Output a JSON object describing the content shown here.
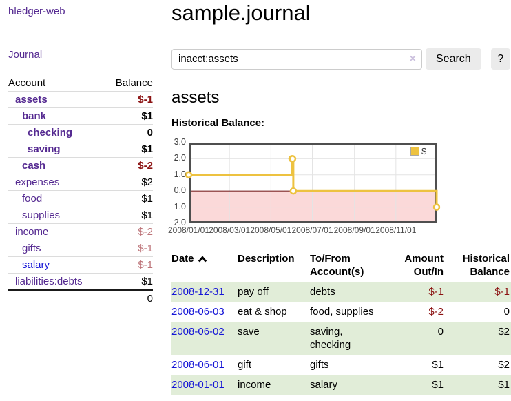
{
  "colors": {
    "link_purple": "#552a91",
    "link_blue": "#1515d6",
    "negative_strong": "#8b1212",
    "negative_soft": "#bd7479",
    "row_stripe_green": "#e1edd8",
    "series_yellow": "#edc240",
    "negative_region_pink": "#fbd9d9",
    "zero_line_red": "#7c2929",
    "chart_frame_gray": "#4f4f4f",
    "button_gray": "#ebebeb"
  },
  "sidebar": {
    "app_title": "hledger-web",
    "nav_journal": "Journal",
    "table": {
      "account_header": "Account",
      "balance_header": "Balance",
      "accounts": [
        {
          "name": "assets",
          "balance": "$-1",
          "depth": 0,
          "bold": true,
          "bal_class": "neg",
          "name_color": "purple"
        },
        {
          "name": "bank",
          "balance": "$1",
          "depth": 1,
          "bold": true,
          "bal_class": "",
          "name_color": "purple"
        },
        {
          "name": "checking",
          "balance": "0",
          "depth": 2,
          "bold": true,
          "bal_class": "",
          "name_color": "purple"
        },
        {
          "name": "saving",
          "balance": "$1",
          "depth": 2,
          "bold": true,
          "bal_class": "",
          "name_color": "purple"
        },
        {
          "name": "cash",
          "balance": "$-2",
          "depth": 1,
          "bold": true,
          "bal_class": "neg",
          "name_color": "purple"
        },
        {
          "name": "expenses",
          "balance": "$2",
          "depth": 0,
          "bold": false,
          "bal_class": "",
          "name_color": "purple"
        },
        {
          "name": "food",
          "balance": "$1",
          "depth": 1,
          "bold": false,
          "bal_class": "",
          "name_color": "purple"
        },
        {
          "name": "supplies",
          "balance": "$1",
          "depth": 1,
          "bold": false,
          "bal_class": "",
          "name_color": "purple"
        },
        {
          "name": "income",
          "balance": "$-2",
          "depth": 0,
          "bold": false,
          "bal_class": "soft-neg",
          "name_color": "purple"
        },
        {
          "name": "gifts",
          "balance": "$-1",
          "depth": 1,
          "bold": false,
          "bal_class": "soft-neg",
          "name_color": "purple"
        },
        {
          "name": "salary",
          "balance": "$-1",
          "depth": 1,
          "bold": false,
          "bal_class": "soft-neg",
          "name_color": "blue"
        },
        {
          "name": "liabilities:debts",
          "balance": "$1",
          "depth": 0,
          "bold": false,
          "bal_class": "",
          "name_color": "purple"
        }
      ],
      "total": "0"
    }
  },
  "main": {
    "title": "sample.journal",
    "search": {
      "value": "inacct:assets",
      "clear_icon": "×",
      "button": "Search",
      "help_button": "?"
    },
    "account_heading": "assets",
    "chart_heading": "Historical Balance:"
  },
  "chart_data": {
    "type": "line",
    "step": true,
    "title": "Historical Balance:",
    "series": [
      {
        "name": "$",
        "color": "#edc240",
        "points": [
          [
            "2008-01-01",
            1
          ],
          [
            "2008-06-01",
            2
          ],
          [
            "2008-06-02",
            2
          ],
          [
            "2008-06-03",
            0
          ],
          [
            "2008-12-31",
            -1
          ]
        ]
      }
    ],
    "x_range": [
      "2008-01-01",
      "2008-12-31"
    ],
    "ylim": [
      -2,
      3
    ],
    "yticks": [
      "3.0",
      "2.0",
      "1.0",
      "0.0",
      "-1.0",
      "-2.0"
    ],
    "xticks": [
      "2008/01/01",
      "2008/03/01",
      "2008/05/01",
      "2008/07/01",
      "2008/09/01",
      "2008/11/01"
    ],
    "grid": true,
    "legend_position": "top-right",
    "negative_region_color": "#fbd9d9",
    "zero_line_color": "#7c2929"
  },
  "register": {
    "headers": {
      "date": "Date",
      "description": "Description",
      "tofrom": "To/From Account(s)",
      "amount": "Amount Out/In",
      "balance": "Historical Balance"
    },
    "rows": [
      {
        "date": "2008-12-31",
        "description": "pay off",
        "accounts": "debts",
        "amount": "$-1",
        "balance": "$-1"
      },
      {
        "date": "2008-06-03",
        "description": "eat & shop",
        "accounts": "food, supplies",
        "amount": "$-2",
        "balance": "0"
      },
      {
        "date": "2008-06-02",
        "description": "save",
        "accounts": "saving,\nchecking",
        "amount": "0",
        "balance": "$2"
      },
      {
        "date": "2008-06-01",
        "description": "gift",
        "accounts": "gifts",
        "amount": "$1",
        "balance": "$2"
      },
      {
        "date": "2008-01-01",
        "description": "income",
        "accounts": "salary",
        "amount": "$1",
        "balance": "$1"
      }
    ]
  }
}
